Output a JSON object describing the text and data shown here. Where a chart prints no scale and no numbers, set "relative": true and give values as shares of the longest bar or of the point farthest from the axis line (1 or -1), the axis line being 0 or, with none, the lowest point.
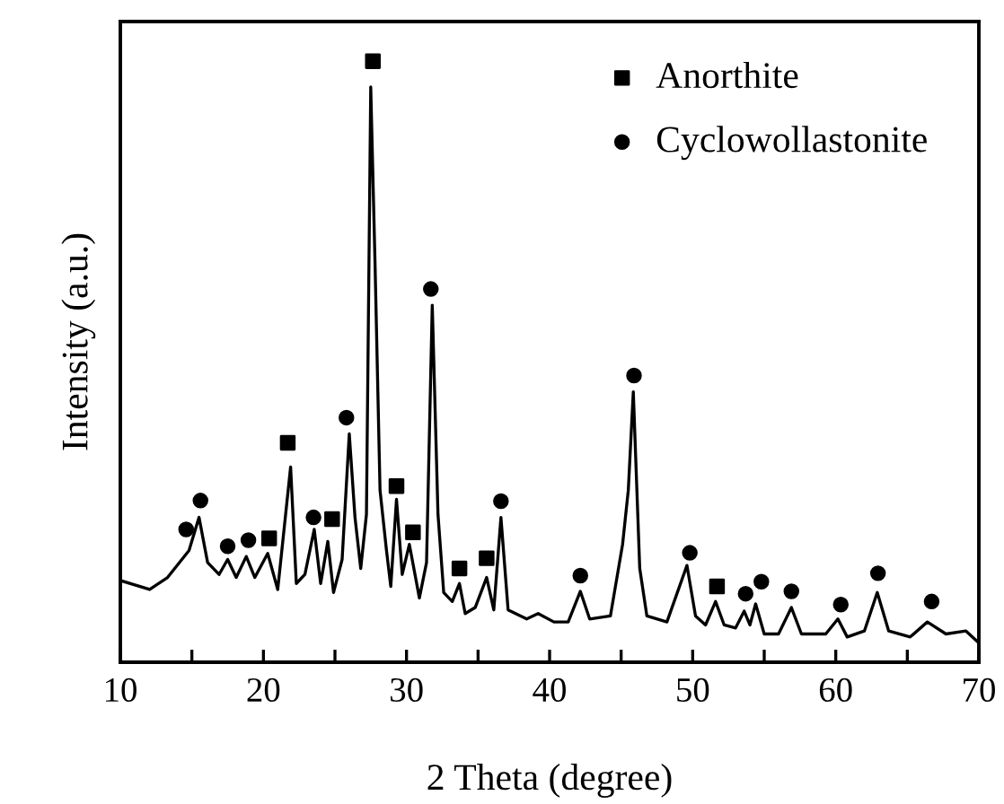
{
  "chart_data": {
    "type": "line",
    "relative": true,
    "xlabel": "2 Theta (degree)",
    "ylabel": "Intensity (a.u.)",
    "xlim": [
      10,
      70
    ],
    "xticks": [
      10,
      {
        "value": 15,
        "label": null
      },
      20,
      {
        "value": 25,
        "label": null
      },
      30,
      {
        "value": 35,
        "label": null
      },
      40,
      {
        "value": 45,
        "label": null
      },
      50,
      {
        "value": 55,
        "label": null
      },
      60,
      {
        "value": 65,
        "label": null
      },
      70
    ],
    "legend": "top right",
    "grid": false,
    "series": [
      {
        "color": "#000000",
        "marker": "none",
        "x": [
          10.0,
          12.05,
          13.3,
          14.8,
          15.5,
          16.1,
          16.9,
          17.5,
          18.1,
          18.8,
          19.4,
          20.3,
          21.0,
          21.9,
          22.3,
          22.9,
          23.55,
          24.0,
          24.5,
          24.9,
          25.5,
          26.0,
          26.4,
          26.8,
          27.2,
          27.5,
          27.8,
          28.15,
          28.6,
          28.9,
          29.3,
          29.7,
          30.2,
          30.9,
          31.4,
          31.8,
          32.2,
          32.6,
          33.2,
          33.7,
          34.1,
          34.8,
          35.6,
          36.1,
          36.6,
          37.1,
          38.4,
          39.2,
          40.3,
          41.3,
          42.15,
          42.8,
          44.25,
          45.1,
          45.5,
          45.85,
          46.3,
          46.8,
          48.2,
          49.6,
          50.2,
          50.9,
          51.6,
          52.2,
          53.0,
          53.6,
          54.0,
          54.4,
          55.0,
          56.0,
          56.9,
          57.6,
          59.3,
          60.15,
          60.8,
          62.0,
          62.9,
          63.7,
          65.2,
          66.4,
          67.7,
          69.1,
          70.0
        ],
        "values": [
          0.136,
          0.121,
          0.141,
          0.186,
          0.241,
          0.166,
          0.146,
          0.171,
          0.141,
          0.176,
          0.141,
          0.181,
          0.121,
          0.325,
          0.131,
          0.146,
          0.221,
          0.131,
          0.201,
          0.116,
          0.171,
          0.38,
          0.241,
          0.156,
          0.246,
          0.957,
          0.664,
          0.286,
          0.186,
          0.126,
          0.271,
          0.146,
          0.196,
          0.107,
          0.166,
          0.594,
          0.246,
          0.116,
          0.101,
          0.131,
          0.081,
          0.091,
          0.141,
          0.087,
          0.241,
          0.087,
          0.072,
          0.081,
          0.067,
          0.067,
          0.118,
          0.072,
          0.077,
          0.196,
          0.286,
          0.45,
          0.156,
          0.077,
          0.067,
          0.161,
          0.077,
          0.062,
          0.101,
          0.062,
          0.057,
          0.085,
          0.062,
          0.097,
          0.047,
          0.047,
          0.091,
          0.047,
          0.047,
          0.072,
          0.042,
          0.052,
          0.116,
          0.052,
          0.042,
          0.067,
          0.047,
          0.052,
          0.032
        ]
      },
      {
        "type": "scatter",
        "name": "Anorthite",
        "color": "#000000",
        "marker": "square",
        "x": [
          20.4,
          21.7,
          24.8,
          27.65,
          29.3,
          30.45,
          33.7,
          35.6,
          51.7
        ],
        "values": [
          0.206,
          0.365,
          0.238,
          1.0,
          0.293,
          0.216,
          0.156,
          0.173,
          0.126
        ]
      },
      {
        "type": "scatter",
        "name": "Cyclowollastonite",
        "color": "#000000",
        "marker": "circle",
        "x": [
          14.6,
          15.6,
          17.5,
          18.95,
          23.5,
          25.8,
          31.7,
          36.6,
          42.15,
          45.9,
          49.8,
          53.7,
          54.8,
          56.9,
          60.35,
          62.95,
          66.7
        ],
        "values": [
          0.221,
          0.269,
          0.193,
          0.203,
          0.241,
          0.407,
          0.621,
          0.268,
          0.144,
          0.477,
          0.182,
          0.114,
          0.134,
          0.118,
          0.096,
          0.148,
          0.101
        ]
      }
    ]
  }
}
